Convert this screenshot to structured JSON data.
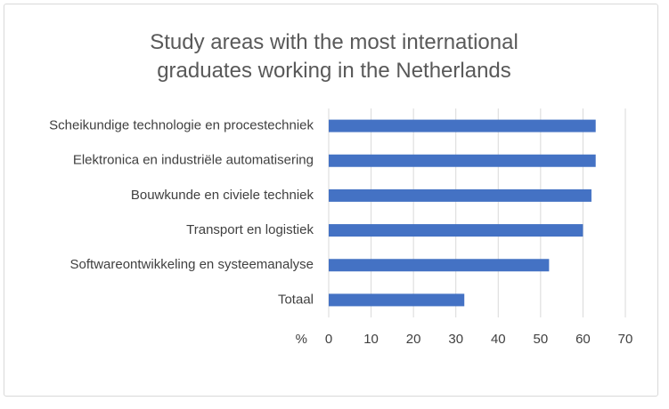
{
  "chart_data": {
    "type": "bar",
    "orientation": "horizontal",
    "title": "Study areas with the most international graduates working in the Netherlands",
    "x_label": "%",
    "categories": [
      "Scheikundige technologie en procestechniek",
      "Elektronica en industriële automatisering",
      "Bouwkunde en civiele techniek",
      "Transport en logistiek",
      "Softwareontwikkeling en systeemanalyse",
      "Totaal"
    ],
    "values": [
      63,
      63,
      62,
      60,
      52,
      32
    ],
    "color": "#4472c4",
    "xlim": [
      0,
      70
    ],
    "xticks": [
      0,
      10,
      20,
      30,
      40,
      50,
      60,
      70
    ],
    "grid": true
  }
}
